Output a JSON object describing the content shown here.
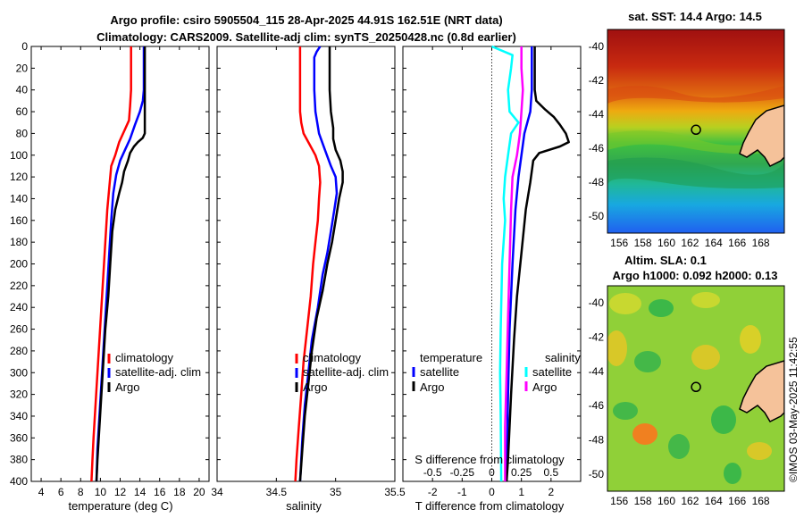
{
  "title_line1": "Argo profile: csiro 5905504_115 28-Apr-2025 44.91S 162.51E (NRT data)",
  "title_line2": "Climatology: CARS2009. Satellite-adj clim: synTS_20250428.nc (0.8d earlier)",
  "side_stamp": "©IMOS 03-May-2025 11:42:55",
  "colors": {
    "climatology": "#ff0000",
    "satellite": "#0000ff",
    "argo": "#000000",
    "s_satellite": "#00ffff",
    "s_argo": "#ff00ff",
    "zero_line": "#000000"
  },
  "chart_data": [
    {
      "type": "line",
      "panel": "temperature",
      "xlabel": "temperature (deg C)",
      "xlim": [
        3,
        21
      ],
      "xticks": [
        4,
        6,
        8,
        10,
        12,
        14,
        16,
        18,
        20
      ],
      "ylim": [
        0,
        400
      ],
      "yticks": [
        0,
        20,
        40,
        60,
        80,
        100,
        120,
        140,
        160,
        180,
        200,
        220,
        240,
        260,
        280,
        300,
        320,
        340,
        360,
        380,
        400
      ],
      "legend": [
        "climatology",
        "satellite-adj. clim",
        "Argo"
      ],
      "series": [
        {
          "name": "climatology",
          "color_key": "climatology",
          "points": [
            [
              13.1,
              0
            ],
            [
              13.1,
              20
            ],
            [
              13.1,
              40
            ],
            [
              13.0,
              55
            ],
            [
              12.9,
              68
            ],
            [
              12.4,
              78
            ],
            [
              11.9,
              88
            ],
            [
              11.5,
              100
            ],
            [
              11.1,
              110
            ],
            [
              10.9,
              130
            ],
            [
              10.7,
              150
            ],
            [
              10.5,
              180
            ],
            [
              10.3,
              210
            ],
            [
              10.1,
              240
            ],
            [
              9.9,
              270
            ],
            [
              9.7,
              300
            ],
            [
              9.5,
              330
            ],
            [
              9.3,
              360
            ],
            [
              9.2,
              380
            ],
            [
              9.1,
              400
            ]
          ]
        },
        {
          "name": "satellite-adj. clim",
          "color_key": "satellite",
          "points": [
            [
              14.4,
              0
            ],
            [
              14.4,
              20
            ],
            [
              14.4,
              40
            ],
            [
              14.3,
              50
            ],
            [
              14.0,
              60
            ],
            [
              13.5,
              72
            ],
            [
              13.0,
              85
            ],
            [
              12.5,
              95
            ],
            [
              12.0,
              105
            ],
            [
              11.6,
              118
            ],
            [
              11.3,
              135
            ],
            [
              11.1,
              160
            ],
            [
              10.9,
              190
            ],
            [
              10.7,
              220
            ],
            [
              10.5,
              250
            ],
            [
              10.3,
              280
            ],
            [
              10.1,
              310
            ],
            [
              9.9,
              340
            ],
            [
              9.7,
              370
            ],
            [
              9.6,
              400
            ]
          ]
        },
        {
          "name": "Argo",
          "color_key": "argo",
          "points": [
            [
              14.5,
              0
            ],
            [
              14.5,
              20
            ],
            [
              14.5,
              40
            ],
            [
              14.5,
              60
            ],
            [
              14.5,
              80
            ],
            [
              14.3,
              84
            ],
            [
              13.8,
              88
            ],
            [
              13.4,
              92
            ],
            [
              13.0,
              98
            ],
            [
              12.8,
              105
            ],
            [
              12.4,
              115
            ],
            [
              12.2,
              125
            ],
            [
              11.9,
              135
            ],
            [
              11.5,
              150
            ],
            [
              11.2,
              170
            ],
            [
              11.0,
              200
            ],
            [
              10.8,
              230
            ],
            [
              10.5,
              260
            ],
            [
              10.3,
              290
            ],
            [
              10.1,
              320
            ],
            [
              9.9,
              350
            ],
            [
              9.7,
              380
            ],
            [
              9.6,
              400
            ]
          ]
        }
      ]
    },
    {
      "type": "line",
      "panel": "salinity",
      "xlabel": "salinity",
      "xlim": [
        34,
        35.5
      ],
      "xticks": [
        34,
        34.5,
        35,
        35.5
      ],
      "ylim": [
        0,
        400
      ],
      "legend": [
        "climatology",
        "satellite-adj. clim",
        "Argo"
      ],
      "series": [
        {
          "name": "climatology",
          "color_key": "climatology",
          "points": [
            [
              34.7,
              0
            ],
            [
              34.7,
              20
            ],
            [
              34.7,
              40
            ],
            [
              34.7,
              60
            ],
            [
              34.71,
              70
            ],
            [
              34.73,
              80
            ],
            [
              34.78,
              90
            ],
            [
              34.83,
              100
            ],
            [
              34.86,
              110
            ],
            [
              34.87,
              125
            ],
            [
              34.86,
              140
            ],
            [
              34.85,
              160
            ],
            [
              34.83,
              180
            ],
            [
              34.81,
              200
            ],
            [
              34.79,
              230
            ],
            [
              34.76,
              260
            ],
            [
              34.73,
              290
            ],
            [
              34.71,
              320
            ],
            [
              34.69,
              350
            ],
            [
              34.67,
              380
            ],
            [
              34.66,
              400
            ]
          ]
        },
        {
          "name": "satellite-adj. clim",
          "color_key": "satellite",
          "points": [
            [
              34.87,
              0
            ],
            [
              34.84,
              5
            ],
            [
              34.82,
              10
            ],
            [
              34.82,
              20
            ],
            [
              34.82,
              40
            ],
            [
              34.83,
              60
            ],
            [
              34.86,
              80
            ],
            [
              34.91,
              95
            ],
            [
              34.96,
              110
            ],
            [
              35.0,
              120
            ],
            [
              35.01,
              135
            ],
            [
              34.99,
              150
            ],
            [
              34.96,
              170
            ],
            [
              34.93,
              190
            ],
            [
              34.89,
              210
            ],
            [
              34.85,
              240
            ],
            [
              34.8,
              270
            ],
            [
              34.77,
              300
            ],
            [
              34.74,
              330
            ],
            [
              34.72,
              360
            ],
            [
              34.71,
              380
            ],
            [
              34.7,
              400
            ]
          ]
        },
        {
          "name": "Argo",
          "color_key": "argo",
          "points": [
            [
              34.95,
              0
            ],
            [
              34.95,
              20
            ],
            [
              34.95,
              40
            ],
            [
              34.96,
              60
            ],
            [
              34.98,
              75
            ],
            [
              34.98,
              85
            ],
            [
              35.0,
              95
            ],
            [
              35.04,
              105
            ],
            [
              35.06,
              115
            ],
            [
              35.06,
              125
            ],
            [
              35.03,
              140
            ],
            [
              35.0,
              160
            ],
            [
              34.97,
              180
            ],
            [
              34.93,
              200
            ],
            [
              34.89,
              225
            ],
            [
              34.84,
              250
            ],
            [
              34.8,
              280
            ],
            [
              34.77,
              310
            ],
            [
              34.74,
              340
            ],
            [
              34.72,
              370
            ],
            [
              34.7,
              400
            ]
          ]
        }
      ]
    },
    {
      "type": "line",
      "panel": "difference",
      "xlabel": "T difference from climatology",
      "xlabel_top": "S difference from climatology",
      "xlim": [
        -3,
        3
      ],
      "xticks": [
        -2,
        -1,
        0,
        1,
        2
      ],
      "xticks_s": [
        "-0.5",
        "-0.25",
        "0",
        "0.25",
        "0.5"
      ],
      "xticks_s_pos": [
        -2,
        -1,
        0,
        1,
        2
      ],
      "ylim": [
        0,
        400
      ],
      "legend_t_title": "temperature",
      "legend_s_title": "salinity",
      "legend_t": [
        "satellite",
        "Argo"
      ],
      "legend_s": [
        "satellite",
        "Argo"
      ],
      "series": [
        {
          "name": "T satellite",
          "color_key": "satellite",
          "points": [
            [
              1.35,
              0
            ],
            [
              1.35,
              20
            ],
            [
              1.35,
              40
            ],
            [
              1.3,
              60
            ],
            [
              1.1,
              80
            ],
            [
              1.0,
              100
            ],
            [
              0.9,
              120
            ],
            [
              0.8,
              150
            ],
            [
              0.7,
              200
            ],
            [
              0.6,
              260
            ],
            [
              0.55,
              320
            ],
            [
              0.5,
              400
            ]
          ]
        },
        {
          "name": "T Argo",
          "color_key": "argo",
          "points": [
            [
              1.45,
              0
            ],
            [
              1.45,
              20
            ],
            [
              1.45,
              40
            ],
            [
              1.5,
              50
            ],
            [
              1.8,
              58
            ],
            [
              2.1,
              65
            ],
            [
              2.3,
              72
            ],
            [
              2.5,
              80
            ],
            [
              2.6,
              88
            ],
            [
              2.3,
              92
            ],
            [
              1.6,
              98
            ],
            [
              1.4,
              105
            ],
            [
              1.3,
              125
            ],
            [
              1.15,
              150
            ],
            [
              1.0,
              190
            ],
            [
              0.85,
              230
            ],
            [
              0.75,
              270
            ],
            [
              0.65,
              320
            ],
            [
              0.55,
              380
            ],
            [
              0.5,
              400
            ]
          ]
        },
        {
          "name": "S satellite",
          "color_key": "s_satellite",
          "points": [
            [
              0.0,
              0
            ],
            [
              0.7,
              8
            ],
            [
              0.65,
              20
            ],
            [
              0.55,
              40
            ],
            [
              0.6,
              60
            ],
            [
              0.9,
              70
            ],
            [
              0.65,
              80
            ],
            [
              0.55,
              100
            ],
            [
              0.45,
              120
            ],
            [
              0.4,
              140
            ],
            [
              0.45,
              160
            ],
            [
              0.35,
              200
            ],
            [
              0.3,
              260
            ],
            [
              0.28,
              300
            ],
            [
              0.3,
              340
            ],
            [
              0.32,
              400
            ]
          ]
        },
        {
          "name": "S Argo",
          "color_key": "s_argo",
          "points": [
            [
              1.0,
              0
            ],
            [
              1.0,
              20
            ],
            [
              1.05,
              40
            ],
            [
              1.0,
              60
            ],
            [
              0.95,
              80
            ],
            [
              0.9,
              90
            ],
            [
              0.85,
              100
            ],
            [
              0.7,
              120
            ],
            [
              0.65,
              150
            ],
            [
              0.6,
              200
            ],
            [
              0.55,
              250
            ],
            [
              0.5,
              300
            ],
            [
              0.45,
              350
            ],
            [
              0.45,
              400
            ]
          ]
        }
      ]
    },
    {
      "type": "heatmap",
      "panel": "sst_map",
      "title": "sat. SST: 14.4  Argo: 14.5",
      "xticks": [
        156,
        158,
        160,
        162,
        164,
        166,
        168
      ],
      "yticks": [
        -40,
        -42,
        -44,
        -46,
        -48,
        -50
      ],
      "xlim": [
        155,
        170
      ],
      "ylim": [
        -51,
        -39
      ],
      "argo_position": [
        162.51,
        -44.91
      ]
    },
    {
      "type": "heatmap",
      "panel": "sla_map",
      "title_line1": "Altim. SLA: 0.1",
      "title_line2": "Argo h1000: 0.092 h2000: 0.13",
      "xticks": [
        156,
        158,
        160,
        162,
        164,
        166,
        168
      ],
      "yticks": [
        -40,
        -42,
        -44,
        -46,
        -48,
        -50
      ],
      "xlim": [
        155,
        170
      ],
      "ylim": [
        -51,
        -39
      ],
      "argo_position": [
        162.51,
        -44.91
      ]
    }
  ]
}
